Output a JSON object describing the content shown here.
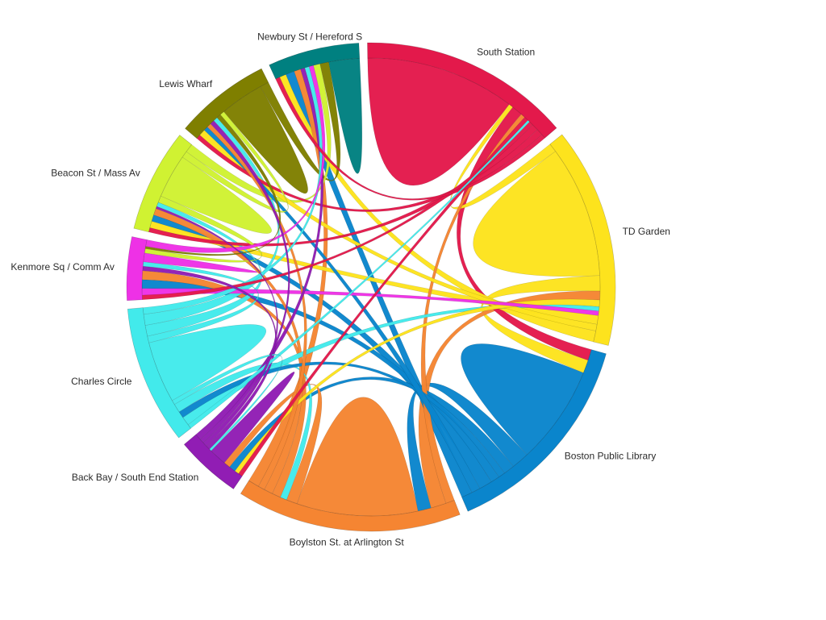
{
  "chart_data": {
    "type": "chord",
    "title": "",
    "groups": [
      {
        "name": "South Station",
        "color": "#e3194b"
      },
      {
        "name": "TD Garden",
        "color": "#fde31d"
      },
      {
        "name": "Boston Public Library",
        "color": "#0a85cc"
      },
      {
        "name": "Boylston St. at Arlington St",
        "color": "#f58532"
      },
      {
        "name": "Back Bay / South End Station",
        "color": "#911db4"
      },
      {
        "name": "Charles Circle",
        "color": "#42eaeb"
      },
      {
        "name": "Kenmore Sq / Comm Av",
        "color": "#ee31e6"
      },
      {
        "name": "Beacon St / Mass Av",
        "color": "#d0f232"
      },
      {
        "name": "Lewis Wharf",
        "color": "#7f7f00"
      },
      {
        "name": "Newbury St / Hereford S",
        "color": "#008080"
      }
    ],
    "matrix": [
      [
        68,
        2,
        5,
        2,
        2,
        1,
        2,
        3,
        3,
        2
      ],
      [
        4,
        60,
        7,
        4,
        3,
        2,
        2,
        4,
        3,
        5
      ],
      [
        5,
        6,
        45,
        8,
        5,
        3,
        4,
        6,
        4,
        5
      ],
      [
        4,
        7,
        6,
        55,
        5,
        3,
        4,
        4,
        3,
        5
      ],
      [
        2,
        2,
        3,
        3,
        8,
        1,
        2,
        2,
        2,
        3
      ],
      [
        2,
        4,
        3,
        4,
        2,
        28,
        3,
        5,
        5,
        3
      ],
      [
        2,
        3,
        4,
        4,
        2,
        2,
        4,
        2,
        1,
        3
      ],
      [
        2,
        3,
        3,
        3,
        1,
        2,
        3,
        20,
        3,
        4
      ],
      [
        2,
        3,
        2,
        2,
        2,
        2,
        2,
        2,
        20,
        4
      ],
      [
        2,
        3,
        4,
        3,
        2,
        2,
        2,
        3,
        4,
        14
      ]
    ]
  }
}
